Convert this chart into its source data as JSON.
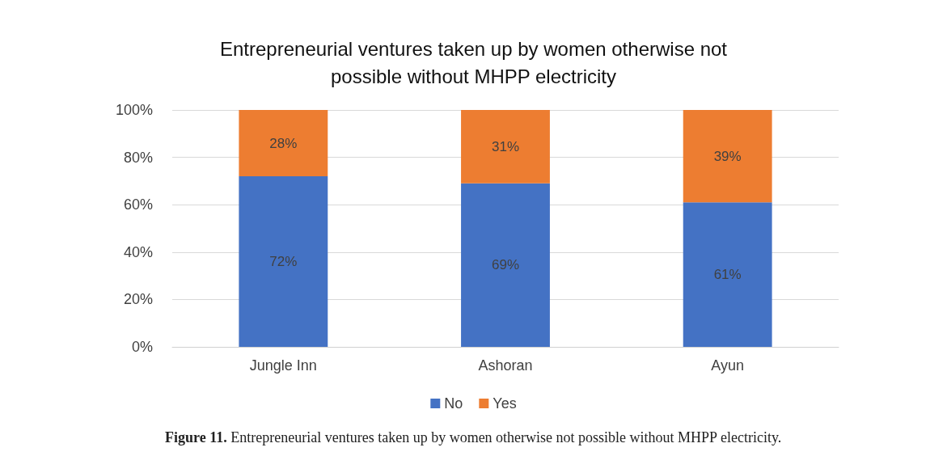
{
  "chart_data": {
    "type": "bar",
    "title": "Entrepreneurial ventures taken up by women otherwise not\npossible without MHPP electricity",
    "categories": [
      "Jungle Inn",
      "Ashoran",
      "Ayun"
    ],
    "stacked": true,
    "series": [
      {
        "name": "No",
        "color": "#4472c4",
        "values": [
          72,
          69,
          61
        ],
        "value_labels": [
          "72%",
          "69%",
          "61%"
        ]
      },
      {
        "name": "Yes",
        "color": "#ed7d31",
        "values": [
          28,
          31,
          39
        ],
        "value_labels": [
          "28%",
          "31%",
          "39%"
        ]
      }
    ],
    "ylim": [
      0,
      100
    ],
    "yticks": [
      {
        "value": 0,
        "label": "0%"
      },
      {
        "value": 20,
        "label": "20%"
      },
      {
        "value": 40,
        "label": "40%"
      },
      {
        "value": 60,
        "label": "60%"
      },
      {
        "value": 80,
        "label": "80%"
      },
      {
        "value": 100,
        "label": "100%"
      }
    ],
    "grid": "y",
    "legend": "bottom",
    "annotations": [
      "Figure 11. Entrepreneurial ventures taken up by women otherwise not possible without MHPP electricity."
    ]
  }
}
